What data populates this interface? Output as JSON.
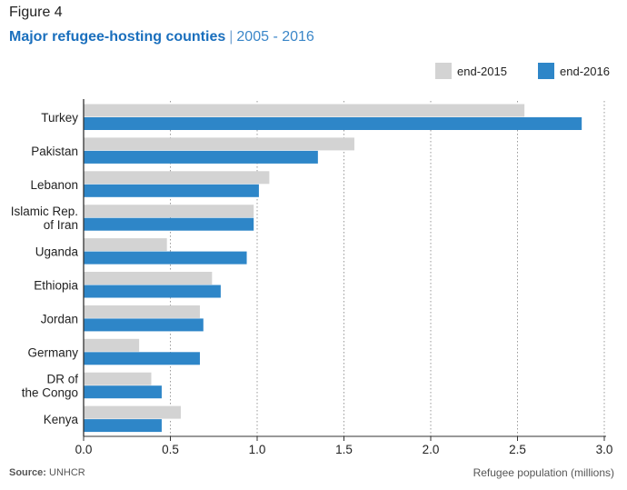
{
  "figure_label": "Figure 4",
  "title": "Major refugee-hosting counties",
  "title_separator": "|",
  "subtitle": "2005 - 2016",
  "source_label": "Source:",
  "source_value": "UNHCR",
  "chart_data": {
    "type": "bar",
    "orientation": "horizontal",
    "categories": [
      [
        "Turkey"
      ],
      [
        "Pakistan"
      ],
      [
        "Lebanon"
      ],
      [
        "Islamic Rep.",
        "of Iran"
      ],
      [
        "Uganda"
      ],
      [
        "Ethiopia"
      ],
      [
        "Jordan"
      ],
      [
        "Germany"
      ],
      [
        "DR of",
        "the Congo"
      ],
      [
        "Kenya"
      ]
    ],
    "series": [
      {
        "name": "end-2015",
        "color": "#d3d3d3",
        "values": [
          2.54,
          1.56,
          1.07,
          0.98,
          0.48,
          0.74,
          0.67,
          0.32,
          0.39,
          0.56
        ]
      },
      {
        "name": "end-2016",
        "color": "#2e86c8",
        "values": [
          2.87,
          1.35,
          1.01,
          0.98,
          0.94,
          0.79,
          0.69,
          0.67,
          0.45,
          0.45
        ]
      }
    ],
    "xlabel": "Refugee population (millions)",
    "xlim": [
      0,
      3.0
    ],
    "xticks": [
      "0.0",
      "0.5",
      "1.0",
      "1.5",
      "2.0",
      "2.5",
      "3.0"
    ],
    "xtick_values": [
      0,
      0.5,
      1.0,
      1.5,
      2.0,
      2.5,
      3.0
    ],
    "grid": "vertical dotted",
    "legend": "top-right"
  }
}
